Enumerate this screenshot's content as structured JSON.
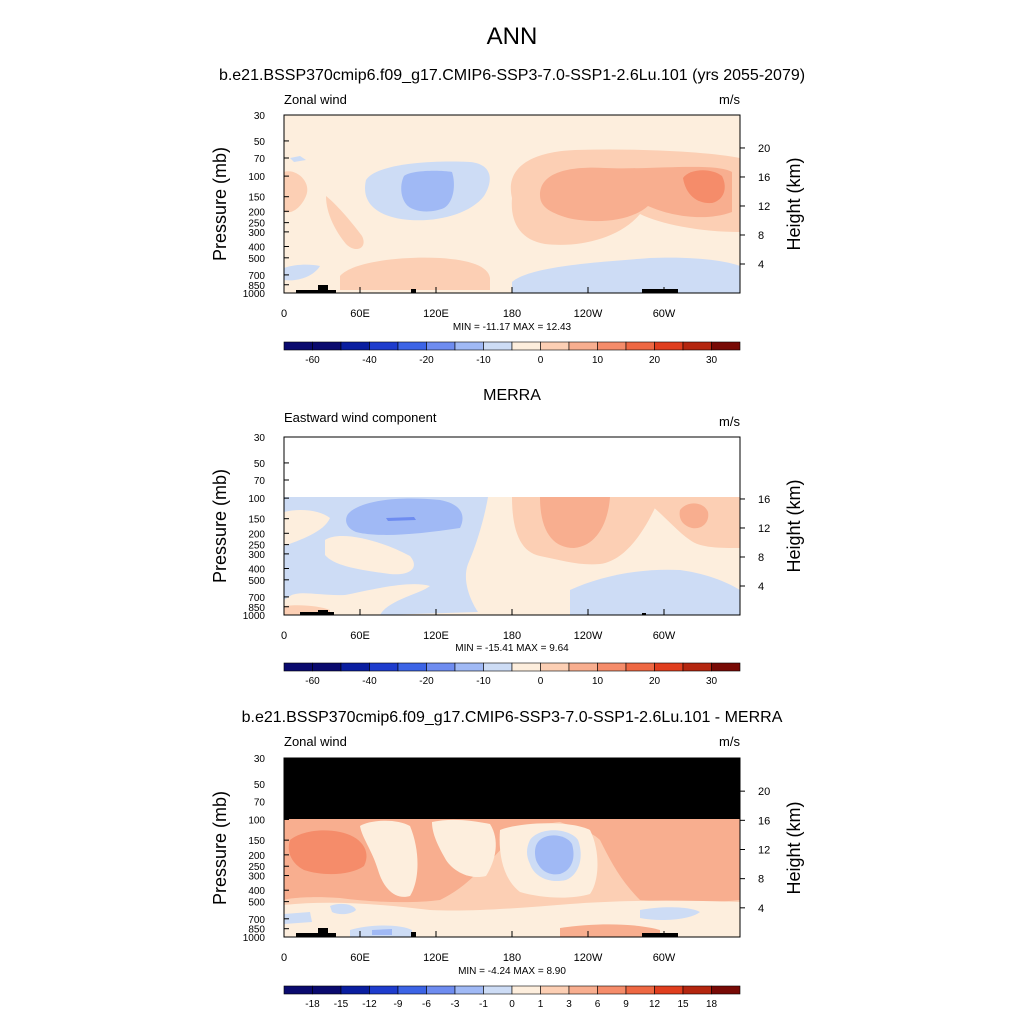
{
  "page": {
    "title": "ANN",
    "title_bottom": "b.e21.BSSP370cmip6.f09_g17.CMIP6-SSP3-7.0-SSP1-2.6Lu.101 - MERRA"
  },
  "colors": {
    "ticks_main": [
      "#0a0a6e",
      "#0a1ea0",
      "#1e3ccd",
      "#3c64e6",
      "#6e8cf0",
      "#a0b9f5",
      "#cddcf5",
      "#fdeedd",
      "#fccfb4",
      "#f8ae8f",
      "#f58c6a",
      "#ee6843",
      "#e03e1e",
      "#b4260f",
      "#780a05"
    ],
    "mask": "#000000"
  },
  "chart_data": [
    {
      "type": "heatmap",
      "title": "b.e21.BSSP370cmip6.f09_g17.CMIP6-SSP3-7.0-SSP1-2.6Lu.101 (yrs 2055-2079)",
      "left_label": "Zonal wind",
      "units": "m/s",
      "ylabel": "Pressure (mb)",
      "ylabel_right": "Height (km)",
      "x_ticks": [
        "0",
        "60E",
        "120E",
        "180",
        "120W",
        "60W"
      ],
      "y_ticks": [
        "30",
        "50",
        "70",
        "100",
        "150",
        "200",
        "250",
        "300",
        "400",
        "500",
        "700",
        "850",
        "1000"
      ],
      "height_ticks": [
        "4",
        "8",
        "12",
        "16",
        "20"
      ],
      "stats": "MIN = -11.17  MAX =  12.43",
      "colorbar_labels": [
        "-60",
        "-40",
        "-20",
        "-10",
        "0",
        "10",
        "20",
        "30"
      ]
    },
    {
      "type": "heatmap",
      "title": "MERRA",
      "left_label": "Eastward wind component",
      "units": "m/s",
      "ylabel": "Pressure (mb)",
      "ylabel_right": "Height (km)",
      "x_ticks": [
        "0",
        "60E",
        "120E",
        "180",
        "120W",
        "60W"
      ],
      "y_ticks": [
        "30",
        "50",
        "70",
        "100",
        "150",
        "200",
        "250",
        "300",
        "400",
        "500",
        "700",
        "850",
        "1000"
      ],
      "height_ticks": [
        "4",
        "8",
        "12",
        "16"
      ],
      "stats": "MIN = -15.41  MAX =   9.64",
      "colorbar_labels": [
        "-60",
        "-40",
        "-20",
        "-10",
        "0",
        "10",
        "20",
        "30"
      ]
    },
    {
      "type": "heatmap",
      "left_label": "Zonal wind",
      "units": "m/s",
      "ylabel": "Pressure (mb)",
      "ylabel_right": "Height (km)",
      "x_ticks": [
        "0",
        "60E",
        "120E",
        "180",
        "120W",
        "60W"
      ],
      "y_ticks": [
        "30",
        "50",
        "70",
        "100",
        "150",
        "200",
        "250",
        "300",
        "400",
        "500",
        "700",
        "850",
        "1000"
      ],
      "height_ticks": [
        "4",
        "8",
        "12",
        "16",
        "20"
      ],
      "stats": "MIN =  -4.24  MAX =   8.90",
      "colorbar_labels": [
        "-18",
        "-15",
        "-12",
        "-9",
        "-6",
        "-3",
        "-1",
        "0",
        "1",
        "3",
        "6",
        "9",
        "12",
        "15",
        "18"
      ]
    }
  ]
}
